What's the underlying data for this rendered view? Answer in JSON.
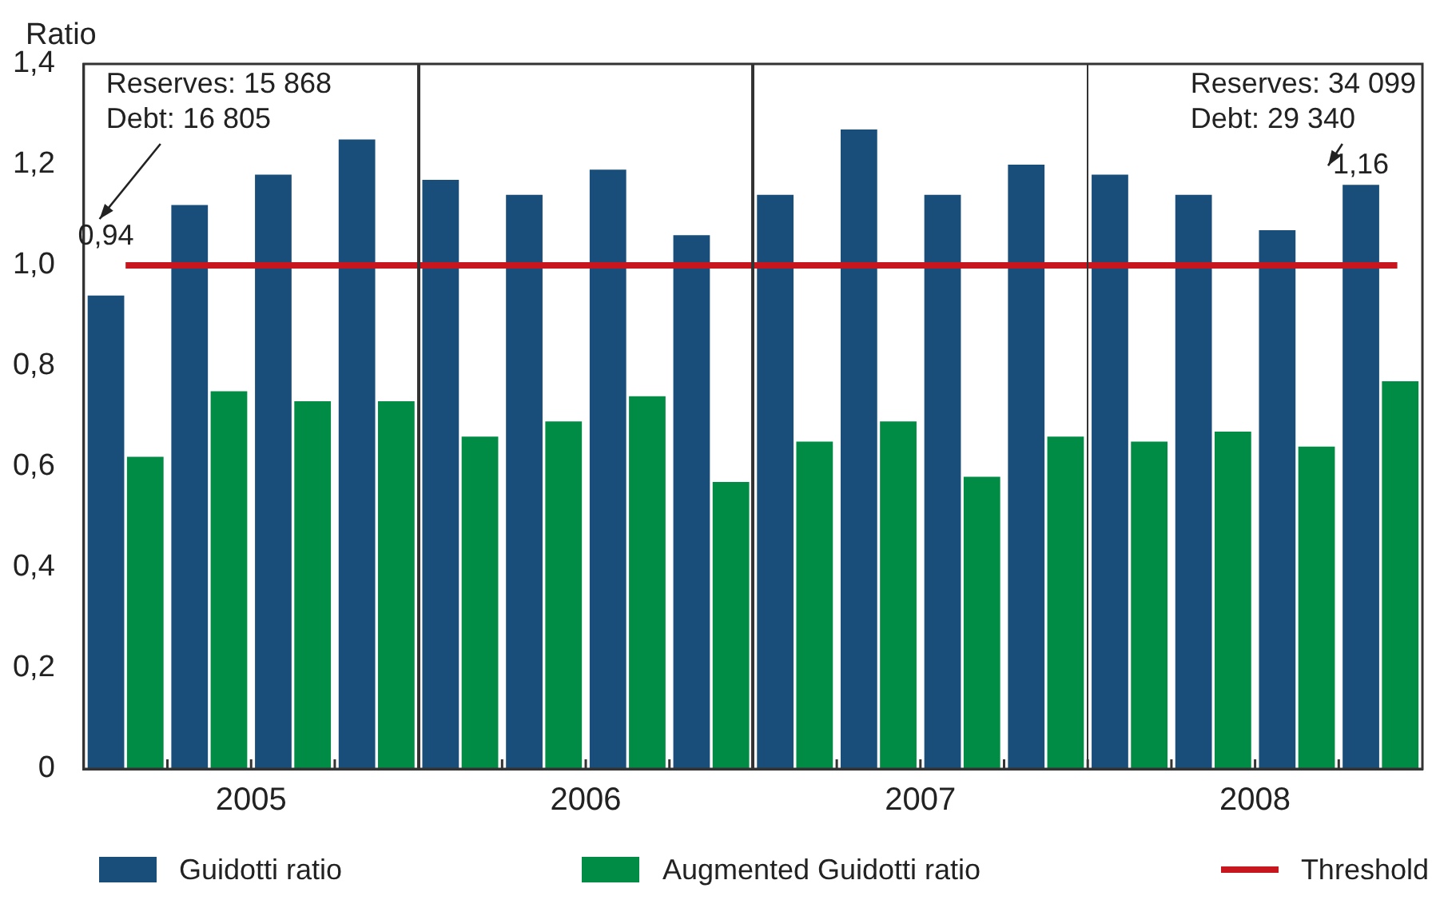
{
  "chart_data": {
    "type": "bar",
    "ylabel": "Ratio",
    "categories": [
      null,
      null,
      null,
      null,
      null,
      null,
      null,
      null,
      null,
      null,
      null,
      null,
      null,
      null,
      null,
      null
    ],
    "series": [
      {
        "name": "Guidotti ratio",
        "color": "#1a4e7a",
        "values": [
          0.94,
          1.12,
          1.18,
          1.25,
          1.17,
          1.14,
          1.19,
          1.06,
          1.14,
          1.27,
          1.14,
          1.2,
          1.18,
          1.14,
          1.07,
          1.16
        ],
        "value_labels": [
          "0,94",
          null,
          null,
          null,
          null,
          null,
          null,
          null,
          null,
          null,
          null,
          null,
          null,
          null,
          null,
          "1,16"
        ]
      },
      {
        "name": "Augmented Guidotti ratio",
        "color": "#008c44",
        "values": [
          0.62,
          0.75,
          0.73,
          0.73,
          0.66,
          0.69,
          0.74,
          0.57,
          0.65,
          0.69,
          0.58,
          0.66,
          0.65,
          0.67,
          0.64,
          0.77
        ]
      }
    ],
    "ref_lines": [
      {
        "axis": "y",
        "value": 1.0,
        "label": "Threshold",
        "color": "#c8161e"
      }
    ],
    "annotations": [
      "Reserves: 15 868\nDebt: 16 805",
      "Reserves: 34 099\nDebt: 29 340",
      "2005",
      "2006",
      "2007",
      "2008"
    ],
    "ylim": [
      0,
      1.4
    ],
    "yticks": [
      0,
      {
        "value": 0.2,
        "label": "0,2"
      },
      {
        "value": 0.4,
        "label": "0,4"
      },
      {
        "value": 0.6,
        "label": "0,6"
      },
      {
        "value": 0.8,
        "label": "0,8"
      },
      {
        "value": 1.0,
        "label": "1,0"
      },
      {
        "value": 1.2,
        "label": "1,2"
      },
      {
        "value": 1.4,
        "label": "1,4"
      }
    ],
    "grid": false,
    "legend": "bottom"
  }
}
